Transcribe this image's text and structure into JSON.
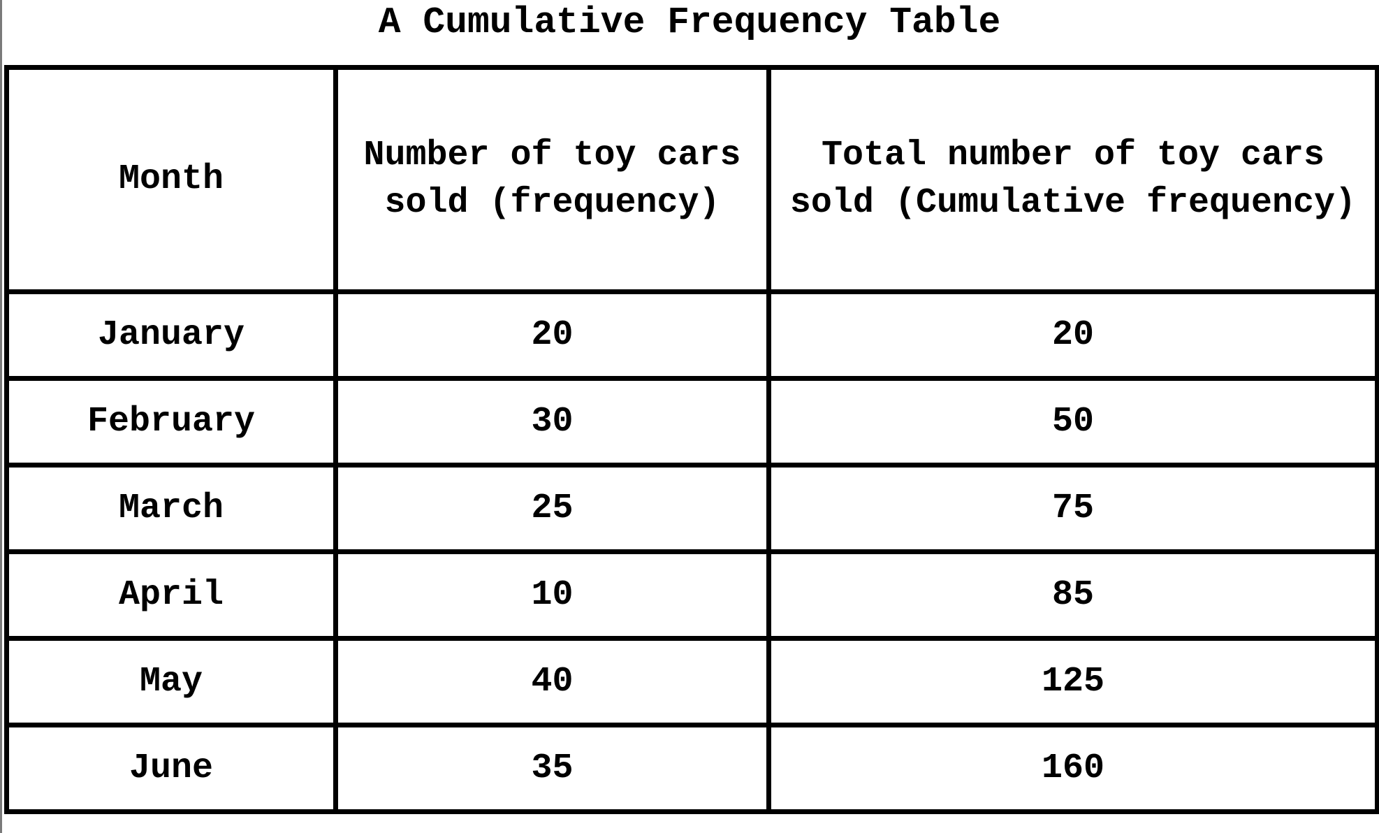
{
  "chart_data": {
    "type": "table",
    "title": "A Cumulative Frequency Table",
    "columns": [
      "Month",
      "Number of toy cars sold (frequency)",
      "Total number of toy cars sold (Cumulative frequency)"
    ],
    "rows": [
      [
        "January",
        "20",
        "20"
      ],
      [
        "February",
        "30",
        "50"
      ],
      [
        "March",
        "25",
        "75"
      ],
      [
        "April",
        "10",
        "85"
      ],
      [
        "May",
        "40",
        "125"
      ],
      [
        "June",
        "35",
        "160"
      ]
    ]
  }
}
